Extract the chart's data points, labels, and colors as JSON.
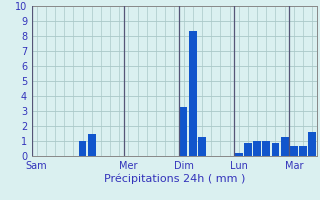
{
  "title": "",
  "xlabel": "Précipitations 24h ( mm )",
  "ylabel": "",
  "background_color": "#daf0f0",
  "bar_color": "#1155cc",
  "grid_color": "#aac8c8",
  "axis_label_color": "#3333bb",
  "tick_color": "#3333bb",
  "spine_color": "#888888",
  "vline_color": "#555577",
  "ylim": [
    0,
    10
  ],
  "yticks": [
    0,
    1,
    2,
    3,
    4,
    5,
    6,
    7,
    8,
    9,
    10
  ],
  "day_labels": [
    "Sam",
    "Mer",
    "Dim",
    "Lun",
    "Mar"
  ],
  "values": [
    0,
    0,
    0,
    0,
    0,
    1.0,
    1.5,
    0,
    0,
    0,
    0,
    0,
    0,
    0,
    0,
    0,
    3.3,
    8.3,
    1.3,
    0,
    0,
    0,
    0.2,
    0.9,
    1.0,
    1.0,
    0.9,
    1.3,
    0.7,
    0.7,
    1.6
  ],
  "n_bars": 31,
  "day_tick_positions": [
    0,
    10,
    16,
    22,
    28
  ],
  "day_vline_positions": [
    0,
    10,
    16,
    22,
    28
  ]
}
